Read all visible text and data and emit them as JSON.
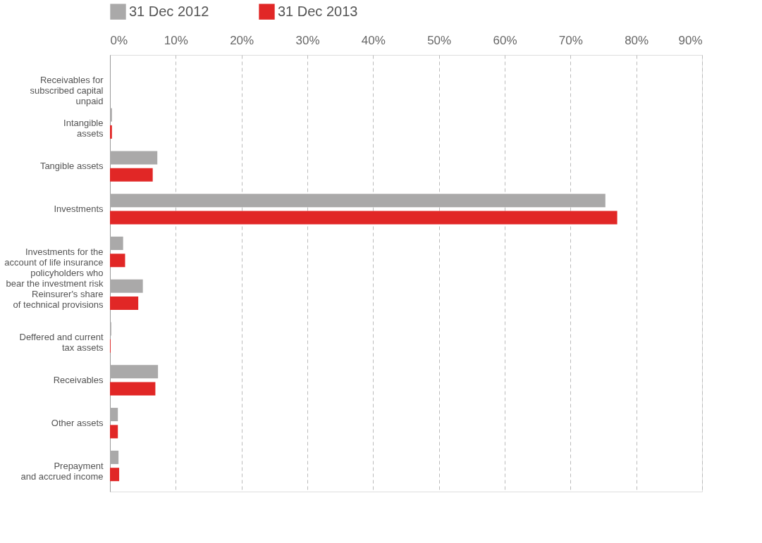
{
  "chart_data": {
    "type": "bar",
    "orientation": "horizontal",
    "categories": [
      "Receivables for\nsubscribed capital\nunpaid",
      "Intangible\nassets",
      "Tangible assets",
      "Investments",
      "Investments for the\naccount of life insurance\npolicyholders who\nbear the investment risk",
      "Reinsurer's share\nof technical provisions",
      "Deffered and current\ntax assets",
      "Receivables",
      "Other assets",
      "Prepayment\nand accrued income"
    ],
    "series": [
      {
        "name": "31 Dec 2012",
        "color": "#aaa9a9",
        "values": [
          0,
          0.3,
          7.2,
          75.3,
          2.0,
          5.0,
          0.2,
          7.3,
          1.2,
          1.3
        ]
      },
      {
        "name": "31 Dec 2013",
        "color": "#e12726",
        "values": [
          0,
          0.3,
          6.5,
          77.1,
          2.3,
          4.3,
          0.1,
          6.9,
          1.2,
          1.4
        ]
      }
    ],
    "xlim": [
      0,
      90
    ],
    "xticks": [
      {
        "value": 0,
        "label": "0%"
      },
      {
        "value": 10,
        "label": "10%"
      },
      {
        "value": 20,
        "label": "20%"
      },
      {
        "value": 30,
        "label": "30%"
      },
      {
        "value": 40,
        "label": "40%"
      },
      {
        "value": 50,
        "label": "50%"
      },
      {
        "value": 60,
        "label": "60%"
      },
      {
        "value": 70,
        "label": "70%"
      },
      {
        "value": 80,
        "label": "80%"
      },
      {
        "value": 90,
        "label": "90%"
      }
    ],
    "grid": "x",
    "legend": "top left"
  }
}
